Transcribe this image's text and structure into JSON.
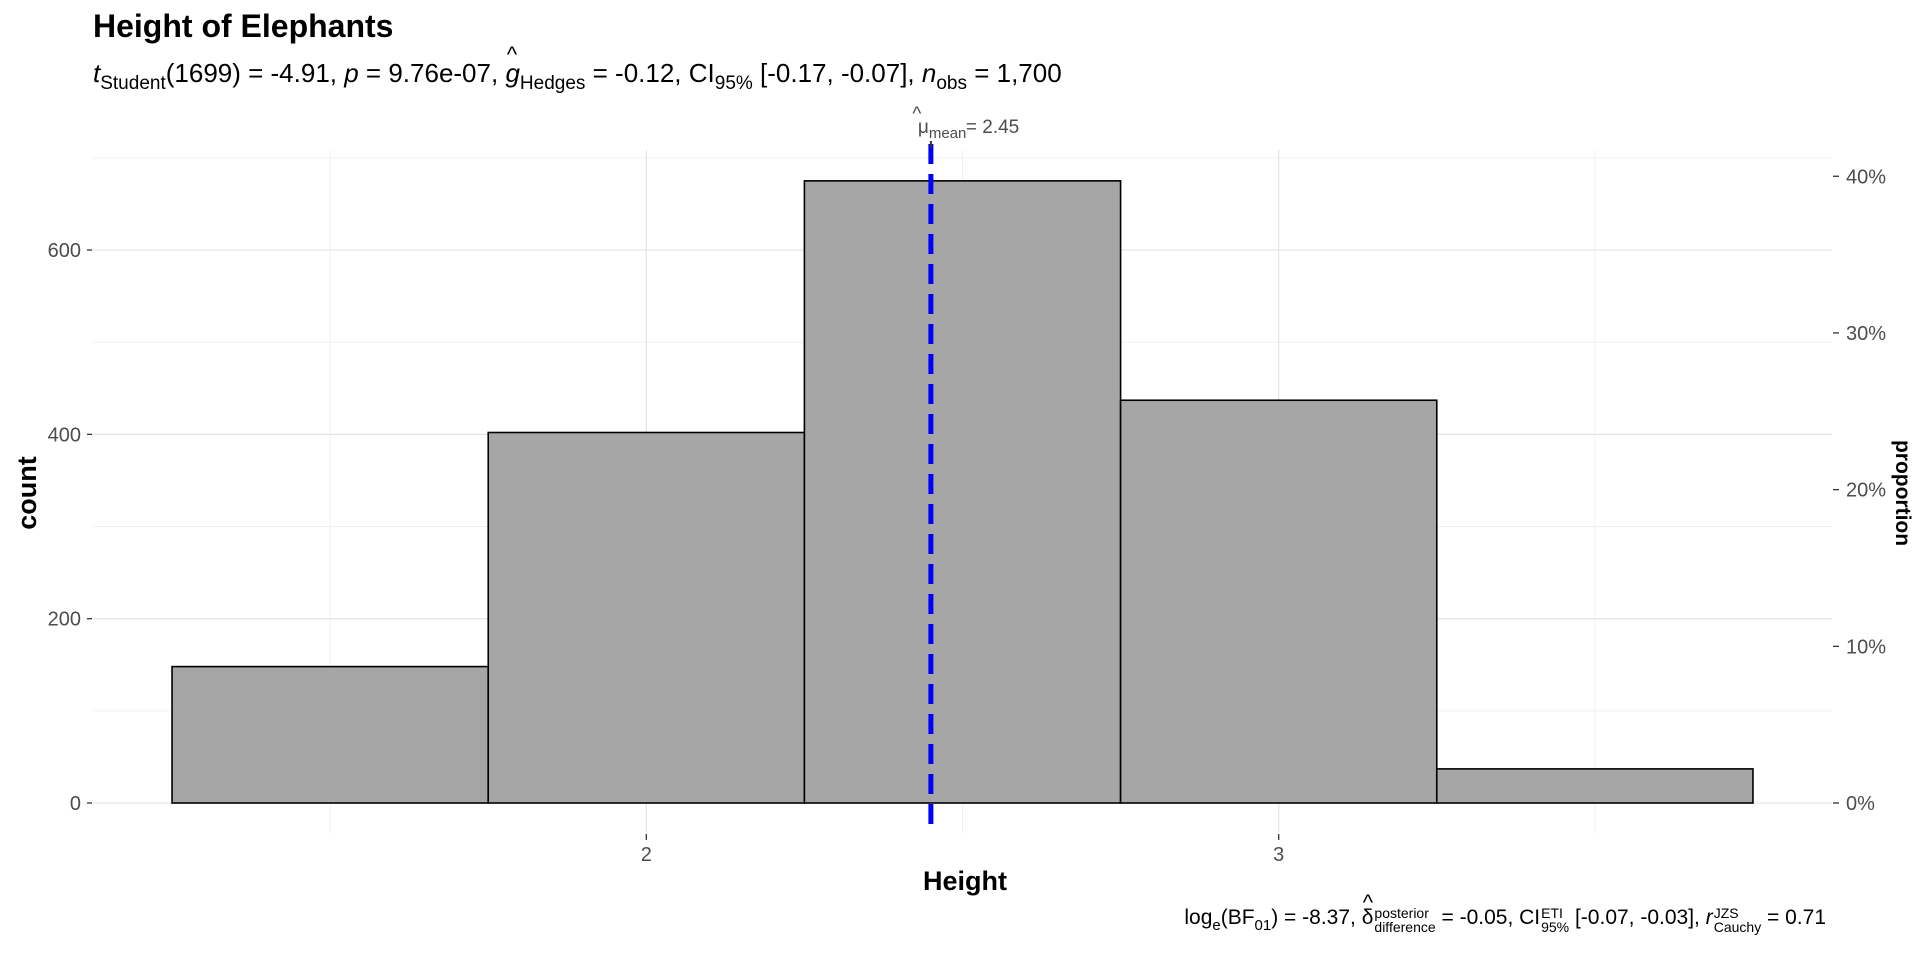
{
  "chart_data": {
    "type": "bar",
    "title": "Height of Elephants",
    "subtitle": {
      "t_label": "t",
      "t_sub": "Student",
      "df": "(1699)",
      "t_value": " = -4.91, ",
      "p_label": "p",
      "p_value": " = 9.76e-07, ",
      "g_label": "g",
      "g_sub": "Hedges",
      "g_value": " = -0.12, CI",
      "ci_sub": "95%",
      "ci_value": " [-0.17, -0.07], ",
      "n_label": "n",
      "n_sub": "obs",
      "n_value": " = 1,700"
    },
    "caption": {
      "log": "log",
      "log_sub": "e",
      "bf": "(BF",
      "bf_sub": "01",
      "bf_value": ") = -8.37, ",
      "delta": "δ",
      "delta_sup": "posterior",
      "delta_sub": "difference",
      "delta_value": " = -0.05, CI",
      "ci_sup": "ETI",
      "ci_sub": "95%",
      "ci_value": " [-0.07, -0.03], ",
      "r": "r",
      "r_sup": "JZS",
      "r_sub": "Cauchy",
      "r_value": " = 0.71"
    },
    "xlabel": "Height",
    "ylabel": "count",
    "y2label": "proportion",
    "xlim": [
      1.125,
      3.875
    ],
    "ylim": [
      0,
      700
    ],
    "x_ticks": [
      2,
      3
    ],
    "y_ticks": [
      0,
      200,
      400,
      600
    ],
    "y2_ticks": [
      "0%",
      "10%",
      "20%",
      "30%",
      "40%"
    ],
    "y2_tick_fractions": [
      0,
      0.1,
      0.2,
      0.3,
      0.4
    ],
    "total": 1700,
    "bins": [
      {
        "x0": 1.25,
        "x1": 1.75,
        "count": 148
      },
      {
        "x0": 1.75,
        "x1": 2.25,
        "count": 402
      },
      {
        "x0": 2.25,
        "x1": 2.75,
        "count": 675
      },
      {
        "x0": 2.75,
        "x1": 3.25,
        "count": 437
      },
      {
        "x0": 3.25,
        "x1": 3.75,
        "count": 37
      }
    ],
    "mean": 2.45,
    "mean_label_symbol": "μ",
    "mean_label_sub": "mean",
    "mean_label_value": " = 2.45",
    "bar_color": "#a6a6a6",
    "mean_line_color": "#0000ff",
    "grid": true
  }
}
